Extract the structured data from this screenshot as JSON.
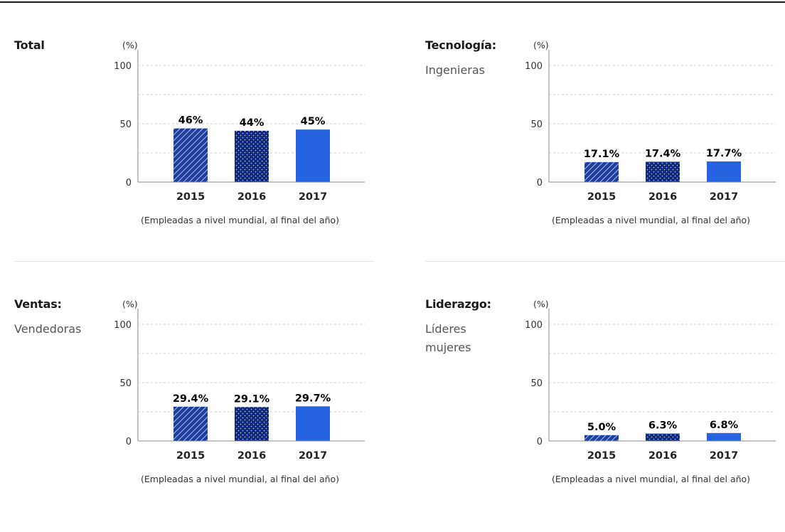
{
  "colors": {
    "bar_2015": "#1f3f9e",
    "bar_2016": "#0f2a7d",
    "bar_2017": "#2563e0",
    "grid": "#cccccc",
    "axis": "#888888"
  },
  "chart_data": [
    {
      "type": "bar",
      "title": "Total",
      "subtitle": "",
      "unit": "(%)",
      "note": "(Empleadas a nivel mundial, al final del año)",
      "categories": [
        "2015",
        "2016",
        "2017"
      ],
      "values": [
        46,
        44,
        45
      ],
      "value_labels": [
        "46%",
        "44%",
        "45%"
      ],
      "yticks": [
        "0",
        "50",
        "100"
      ],
      "ylim": [
        0,
        100
      ],
      "grid": true
    },
    {
      "type": "bar",
      "title": "Tecnología:",
      "subtitle": "Ingenieras",
      "unit": "(%)",
      "note": "(Empleadas a nivel mundial, al final del año)",
      "categories": [
        "2015",
        "2016",
        "2017"
      ],
      "values": [
        17.1,
        17.4,
        17.7
      ],
      "value_labels": [
        "17.1%",
        "17.4%",
        "17.7%"
      ],
      "yticks": [
        "0",
        "50",
        "100"
      ],
      "ylim": [
        0,
        100
      ],
      "grid": true
    },
    {
      "type": "bar",
      "title": "Ventas:",
      "subtitle": "Vendedoras",
      "unit": "(%)",
      "note": "(Empleadas a nivel mundial, al final del año)",
      "categories": [
        "2015",
        "2016",
        "2017"
      ],
      "values": [
        29.4,
        29.1,
        29.7
      ],
      "value_labels": [
        "29.4%",
        "29.1%",
        "29.7%"
      ],
      "yticks": [
        "0",
        "50",
        "100"
      ],
      "ylim": [
        0,
        100
      ],
      "grid": true
    },
    {
      "type": "bar",
      "title": "Liderazgo:",
      "subtitle": "Líderes mujeres",
      "unit": "(%)",
      "note": "(Empleadas a nivel mundial, al final del año)",
      "categories": [
        "2015",
        "2016",
        "2017"
      ],
      "values": [
        5.0,
        6.3,
        6.8
      ],
      "value_labels": [
        "5.0%",
        "6.3%",
        "6.8%"
      ],
      "yticks": [
        "0",
        "50",
        "100"
      ],
      "ylim": [
        0,
        100
      ],
      "grid": true
    }
  ]
}
